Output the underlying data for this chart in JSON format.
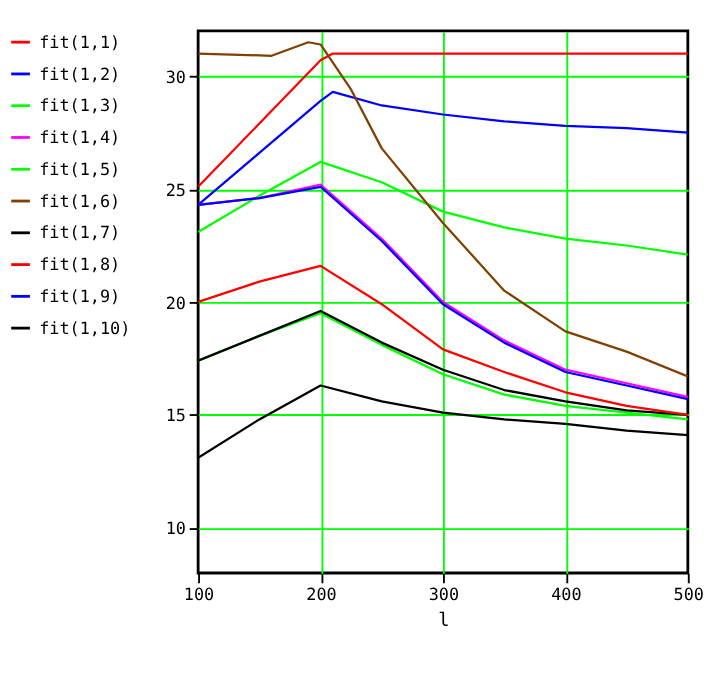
{
  "chart_data": {
    "type": "line",
    "xlabel": "l",
    "xlim": [
      100,
      500
    ],
    "xticks": [
      100,
      200,
      300,
      400,
      500
    ],
    "ylim": [
      8,
      32
    ],
    "yticks": [
      10,
      15,
      20,
      25,
      30
    ],
    "grid": true,
    "legend": "left",
    "marker": "none",
    "line_style": "solid",
    "x": [
      100,
      150,
      200,
      250,
      300,
      350,
      400,
      450,
      500
    ],
    "series": [
      {
        "name": "fit(1,1)",
        "color": "#ff0000",
        "x": [
          100,
          150,
          200,
          210,
          250,
          300,
          350,
          400,
          450,
          500
        ],
        "values": [
          25.1,
          27.9,
          30.7,
          31.0,
          31.0,
          31.0,
          31.0,
          31.0,
          31.0,
          31.0
        ]
      },
      {
        "name": "fit(1,2)",
        "color": "#0000ff",
        "x": [
          100,
          150,
          200,
          210,
          250,
          300,
          350,
          400,
          450,
          500
        ],
        "values": [
          24.3,
          26.6,
          28.9,
          29.3,
          28.7,
          28.3,
          28.0,
          27.8,
          27.7,
          27.5
        ]
      },
      {
        "name": "fit(1,3)",
        "color": "#00ff00",
        "values": [
          23.1,
          24.7,
          26.2,
          25.3,
          24.0,
          23.3,
          22.8,
          22.5,
          22.1
        ]
      },
      {
        "name": "fit(1,4)",
        "color": "#ff00ff",
        "values": [
          24.3,
          24.6,
          25.2,
          22.8,
          20.0,
          18.3,
          17.0,
          16.4,
          15.8
        ]
      },
      {
        "name": "fit(1,5)",
        "color": "#00ff00",
        "values": [
          17.4,
          18.5,
          19.5,
          18.1,
          16.8,
          15.9,
          15.4,
          15.1,
          14.8
        ]
      },
      {
        "name": "fit(1,6)",
        "color": "#804000",
        "x": [
          100,
          160,
          190,
          200,
          225,
          250,
          300,
          350,
          400,
          450,
          500
        ],
        "values": [
          31.0,
          30.9,
          31.5,
          31.4,
          29.4,
          26.8,
          23.5,
          20.5,
          18.7,
          17.8,
          16.7
        ]
      },
      {
        "name": "fit(1,7)",
        "color": "#000000",
        "values": [
          17.4,
          18.5,
          19.6,
          18.2,
          17.0,
          16.1,
          15.6,
          15.2,
          15.0
        ]
      },
      {
        "name": "fit(1,8)",
        "color": "#ff0000",
        "values": [
          20.0,
          20.9,
          21.6,
          19.9,
          17.9,
          16.9,
          16.0,
          15.4,
          15.0
        ]
      },
      {
        "name": "fit(1,9)",
        "color": "#0000ff",
        "values": [
          24.3,
          24.6,
          25.1,
          22.7,
          19.9,
          18.2,
          16.9,
          16.3,
          15.7
        ]
      },
      {
        "name": "fit(1,10)",
        "color": "#000000",
        "values": [
          13.1,
          14.8,
          16.3,
          15.6,
          15.1,
          14.8,
          14.6,
          14.3,
          14.1
        ]
      }
    ]
  }
}
